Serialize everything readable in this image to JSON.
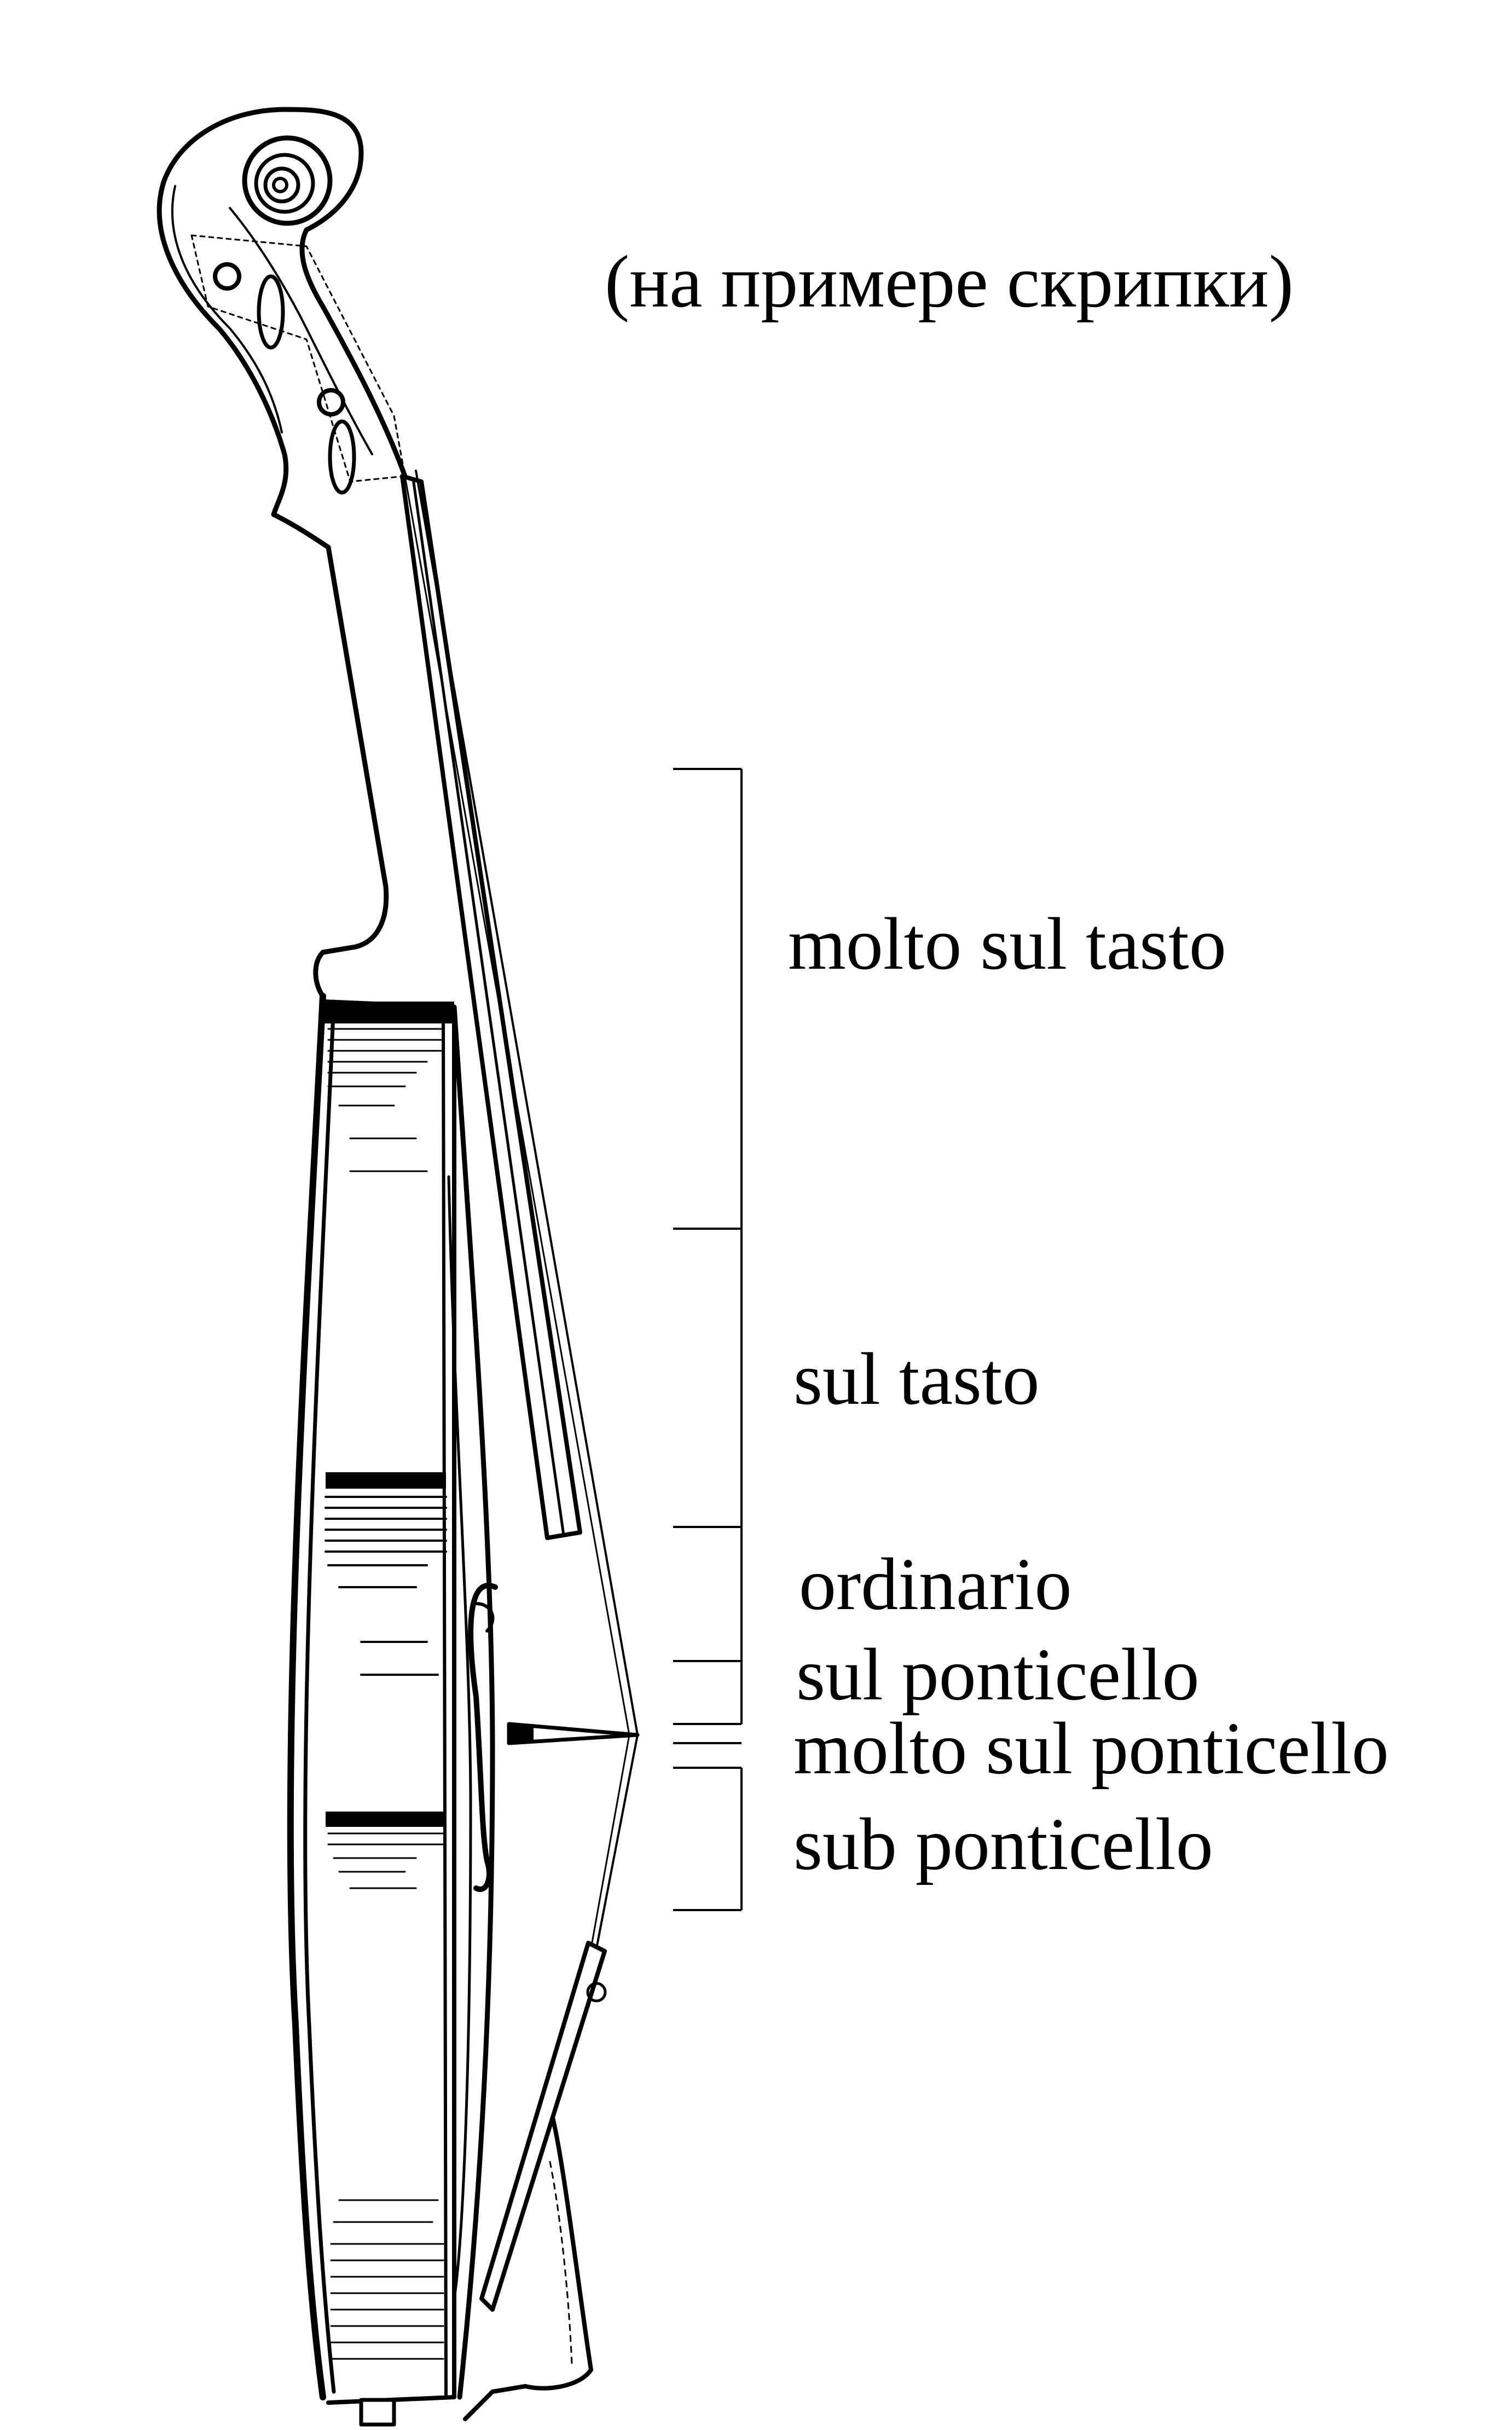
{
  "caption": "(на примере скрипки)",
  "zones": [
    {
      "id": "molto-sul-tasto",
      "label": "molto sul tasto"
    },
    {
      "id": "sul-tasto",
      "label": "sul tasto"
    },
    {
      "id": "ordinario",
      "label": "ordinario"
    },
    {
      "id": "sul-ponticello",
      "label": "sul ponticello"
    },
    {
      "id": "molto-sul-ponticello",
      "label": "molto sul ponticello"
    },
    {
      "id": "sub-ponticello",
      "label": "sub ponticello"
    }
  ]
}
